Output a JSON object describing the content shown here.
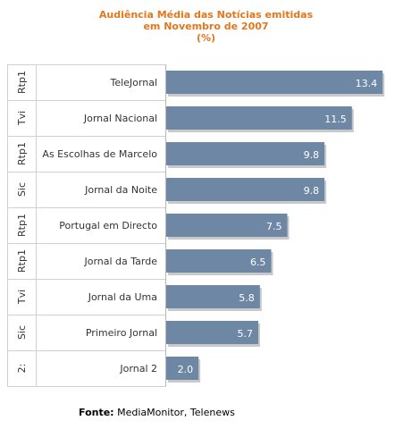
{
  "chart_data": {
    "type": "bar",
    "orientation": "horizontal",
    "title_lines": [
      "Audiência Média das Notícias emitidas",
      "em Novembro de 2007",
      "(%)"
    ],
    "rows": [
      {
        "group": "Rtp1",
        "label": "TeleJornal",
        "value": 13.4,
        "value_label": "13.4"
      },
      {
        "group": "Tvi",
        "label": "Jornal Nacional",
        "value": 11.5,
        "value_label": "11.5"
      },
      {
        "group": "Rtp1",
        "label": "As Escolhas de Marcelo",
        "value": 9.8,
        "value_label": "9.8"
      },
      {
        "group": "Sic",
        "label": "Jornal da Noite",
        "value": 9.8,
        "value_label": "9.8"
      },
      {
        "group": "Rtp1",
        "label": "Portugal em Directo",
        "value": 7.5,
        "value_label": "7.5"
      },
      {
        "group": "Rtp1",
        "label": "Jornal da Tarde",
        "value": 6.5,
        "value_label": "6.5"
      },
      {
        "group": "Tvi",
        "label": "Jornal da Uma",
        "value": 5.8,
        "value_label": "5.8"
      },
      {
        "group": "Sic",
        "label": "Primeiro Jornal",
        "value": 5.7,
        "value_label": "5.7"
      },
      {
        "group": "2:",
        "label": "Jornal 2",
        "value": 2.0,
        "value_label": "2.0"
      }
    ],
    "xlim": [
      0,
      14.5
    ],
    "colors": {
      "bar": "#6e87a5",
      "bar_shadow": "#c9c9c9",
      "title": "#e4761b",
      "grid": "#d0d0d0",
      "value_text": "#ffffff"
    }
  },
  "source": {
    "label": "Fonte:",
    "text": "MediaMonitor, Telenews"
  }
}
